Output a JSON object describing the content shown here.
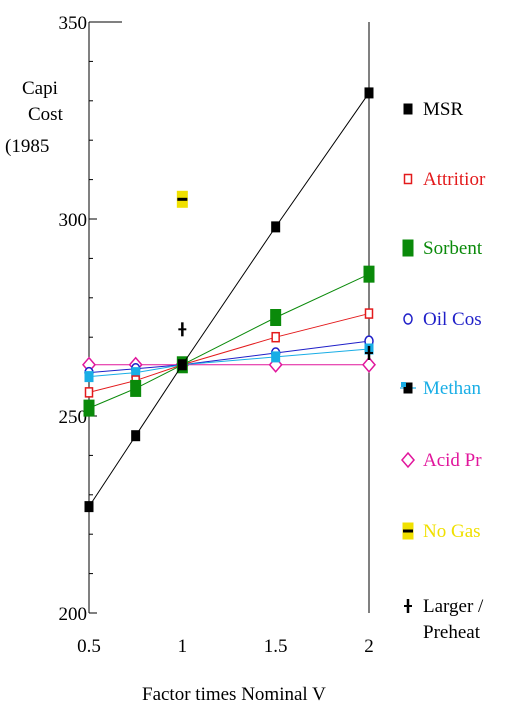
{
  "chart_data": {
    "type": "line",
    "title": "",
    "xlabel": "Factor times Nominal V",
    "ylabel_lines": [
      "Capi",
      "Cost",
      "(1985"
    ],
    "xlim": [
      0.5,
      2
    ],
    "ylim": [
      200,
      350
    ],
    "x_ticks": [
      0.5,
      1,
      1.5,
      2
    ],
    "x_tick_labels": [
      "0.5",
      "1",
      "1.5",
      "2"
    ],
    "y_ticks": [
      200,
      250,
      300,
      350
    ],
    "y_tick_labels": [
      "200",
      "250",
      "300",
      "350"
    ],
    "grid": false,
    "legend_position": "right",
    "series": [
      {
        "name": "MSR",
        "color": "#000000",
        "marker": "filled-square",
        "line": true,
        "x": [
          0.5,
          0.75,
          1,
          1.5,
          2
        ],
        "y": [
          227,
          245,
          263,
          298,
          332
        ]
      },
      {
        "name": "Attritior",
        "color": "#e31a1c",
        "marker": "open-square",
        "line": true,
        "x": [
          0.5,
          0.75,
          1,
          1.5,
          2
        ],
        "y": [
          256,
          259,
          263,
          270,
          276
        ]
      },
      {
        "name": "Sorbent",
        "color": "#0a8a0a",
        "marker": "filled-rect",
        "line": true,
        "x": [
          0.5,
          0.75,
          1,
          1.5,
          2
        ],
        "y": [
          252,
          257,
          263,
          275,
          286
        ]
      },
      {
        "name": "Oil Cos",
        "color": "#1f1fc8",
        "marker": "open-circle",
        "line": true,
        "x": [
          0.5,
          0.75,
          1,
          1.5,
          2
        ],
        "y": [
          261,
          262,
          263,
          266,
          269
        ]
      },
      {
        "name": "Methan",
        "color": "#19aee6",
        "marker": "filled-square",
        "line": true,
        "x": [
          0.5,
          0.75,
          1,
          1.5,
          2
        ],
        "y": [
          260,
          261,
          263,
          265,
          267
        ]
      },
      {
        "name": "Acid Pr",
        "color": "#e1169c",
        "marker": "open-diamond",
        "line": true,
        "x": [
          0.5,
          0.75,
          1,
          1.5,
          2
        ],
        "y": [
          263,
          263,
          263,
          263,
          263
        ]
      },
      {
        "name": "No Gas",
        "color": "#f0e000",
        "marker": "yellow-box",
        "line": false,
        "x": [
          1
        ],
        "y": [
          305
        ]
      },
      {
        "name": "Larger /\nPreheat",
        "legend_lines": [
          "Larger /",
          "Preheat"
        ],
        "color": "#000000",
        "marker": "plus",
        "line": false,
        "x": [
          1,
          2
        ],
        "y": [
          272,
          266
        ]
      }
    ]
  }
}
